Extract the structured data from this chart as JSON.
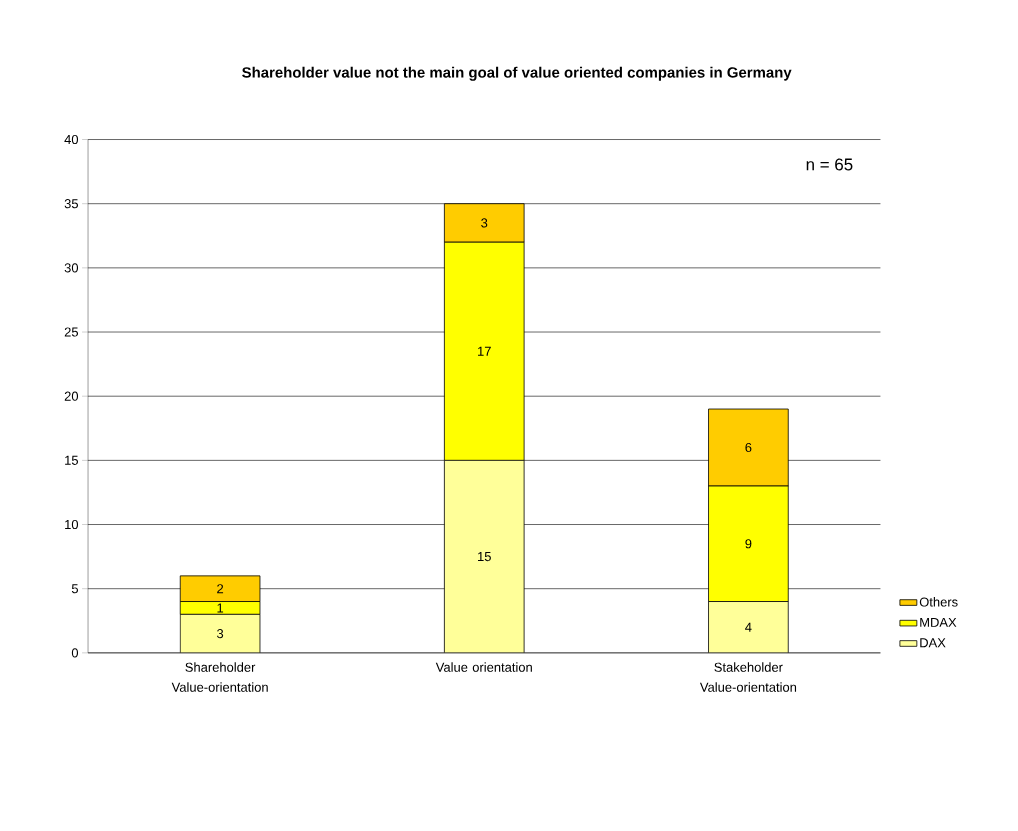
{
  "chart_data": {
    "type": "bar",
    "title": "Shareholder value not the main goal of value oriented companies in Germany",
    "categories": [
      "Shareholder Value-orientation",
      "Value orientation",
      "Stakeholder Value-orientation"
    ],
    "stacked": true,
    "data_labels": true,
    "grid": "y",
    "legend": "bottom right",
    "ylim": [
      0,
      40
    ],
    "yticks": [
      0,
      5,
      10,
      15,
      20,
      25,
      30,
      35,
      40
    ],
    "annotations": [
      "n = 65"
    ],
    "series": [
      {
        "name": "DAX",
        "color": "#ffff99",
        "values": [
          3,
          15,
          4
        ]
      },
      {
        "name": "MDAX",
        "color": "#ffff00",
        "values": [
          1,
          17,
          9
        ]
      },
      {
        "name": "Others",
        "color": "#ffcc00",
        "values": [
          2,
          3,
          6
        ]
      }
    ]
  }
}
